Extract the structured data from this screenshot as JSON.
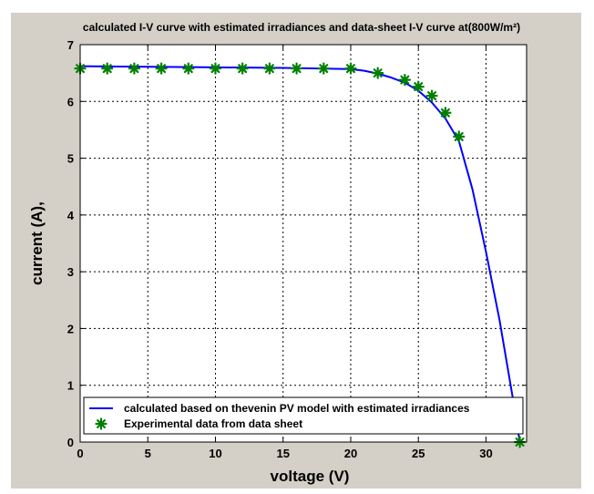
{
  "chart_data": {
    "type": "line",
    "title": "calculated I-V curve  with estimated irradiances and data-sheet I-V curve at(800W/m²)",
    "xlabel": "voltage (V)",
    "ylabel": "current  (A),",
    "xlim": [
      0,
      33
    ],
    "ylim": [
      0,
      7
    ],
    "x_ticks": [
      0,
      5,
      10,
      15,
      20,
      25,
      30
    ],
    "y_ticks": [
      0,
      1,
      2,
      3,
      4,
      5,
      6,
      7
    ],
    "grid": true,
    "legend_position": "bottom-left",
    "series": [
      {
        "name": "calculated  based on thevenin PV model with estimated irradiances",
        "style": "line",
        "color": "#0000ff",
        "x": [
          0,
          5,
          10,
          15,
          20,
          21,
          22,
          23,
          24,
          25,
          26,
          27,
          28,
          29,
          30,
          31,
          32,
          32.5
        ],
        "y": [
          6.62,
          6.61,
          6.6,
          6.59,
          6.57,
          6.54,
          6.49,
          6.42,
          6.33,
          6.19,
          5.98,
          5.7,
          5.3,
          4.45,
          3.35,
          2.15,
          0.75,
          0
        ]
      },
      {
        "name": "Experimental  data from data sheet",
        "style": "marker",
        "marker": "asterisk",
        "color": "#008000",
        "x": [
          0,
          2,
          4,
          6,
          8,
          10,
          12,
          14,
          16,
          18,
          20,
          22,
          24,
          25,
          26,
          27,
          28,
          32.5
        ],
        "y": [
          6.58,
          6.58,
          6.58,
          6.58,
          6.58,
          6.58,
          6.58,
          6.58,
          6.58,
          6.58,
          6.58,
          6.5,
          6.38,
          6.26,
          6.1,
          5.8,
          5.38,
          0
        ]
      }
    ]
  }
}
